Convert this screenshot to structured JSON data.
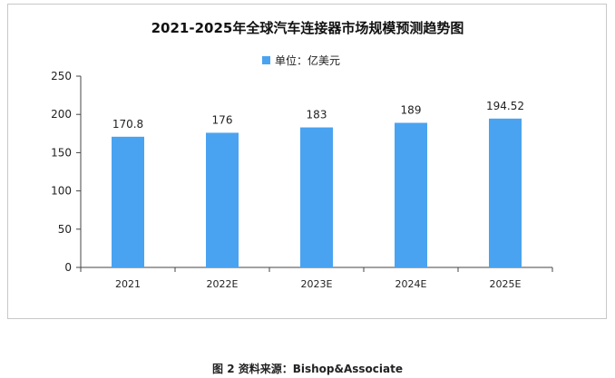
{
  "chart_data": {
    "type": "bar",
    "title": "2021-2025年全球汽车连接器市场规模预测趋势图",
    "legend": {
      "label": "单位：亿美元",
      "placement": "top-center"
    },
    "categories": [
      "2021",
      "2022E",
      "2023E",
      "2024E",
      "2025E"
    ],
    "values": [
      170.8,
      176,
      183,
      189,
      194.52
    ],
    "value_labels": [
      "170.8",
      "176",
      "183",
      "189",
      "194.52"
    ],
    "ylim": [
      0,
      250
    ],
    "yticks": [
      0,
      50,
      100,
      150,
      200,
      250
    ],
    "xlabel": "",
    "ylabel": "",
    "grid": false,
    "bar_color": "#4aa3f0"
  },
  "caption": "图 2 资料来源：Bishop&Associate"
}
